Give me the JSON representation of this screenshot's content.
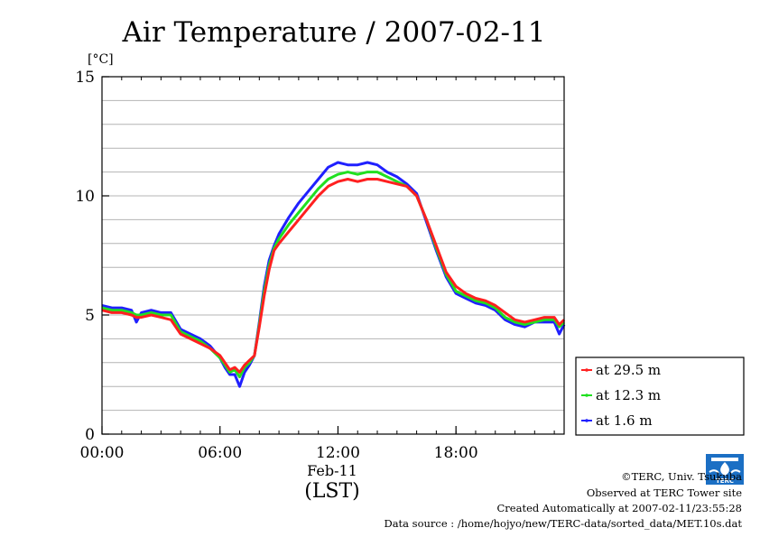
{
  "chart_data": {
    "type": "line",
    "title": "Air Temperature / 2007-02-11",
    "unit": "[°C]",
    "ylim": [
      0,
      15
    ],
    "xlim": [
      0,
      23.5
    ],
    "yticks": [
      0,
      5,
      10,
      15
    ],
    "xticks": [
      {
        "v": 0,
        "label": "00:00"
      },
      {
        "v": 6,
        "label": "06:00"
      },
      {
        "v": 12,
        "label": "12:00"
      },
      {
        "v": 18,
        "label": "18:00"
      }
    ],
    "date_label": "Feb-11",
    "xlabel": "(LST)",
    "grid": true,
    "legend_position": "right",
    "series": [
      {
        "name": "at 29.5 m",
        "color": "#ff2020",
        "x": [
          0,
          0.5,
          1,
          1.5,
          1.75,
          2,
          2.5,
          3,
          3.5,
          4,
          4.5,
          5,
          5.5,
          6,
          6.25,
          6.5,
          6.75,
          7,
          7.25,
          7.5,
          7.75,
          8,
          8.25,
          8.5,
          8.75,
          9,
          9.5,
          10,
          10.5,
          11,
          11.5,
          12,
          12.5,
          13,
          13.5,
          14,
          14.5,
          15,
          15.5,
          16,
          16.5,
          17,
          17.5,
          18,
          18.5,
          19,
          19.5,
          20,
          20.5,
          21,
          21.5,
          22,
          22.5,
          23,
          23.25,
          23.5
        ],
        "y": [
          5.2,
          5.1,
          5.1,
          5.0,
          4.9,
          4.9,
          5.0,
          4.9,
          4.8,
          4.2,
          4.0,
          3.8,
          3.6,
          3.3,
          3.0,
          2.7,
          2.8,
          2.6,
          2.9,
          3.1,
          3.3,
          4.5,
          5.8,
          6.9,
          7.7,
          8.0,
          8.5,
          9.0,
          9.5,
          10.0,
          10.4,
          10.6,
          10.7,
          10.6,
          10.7,
          10.7,
          10.6,
          10.5,
          10.4,
          10.0,
          9.0,
          7.9,
          6.8,
          6.2,
          5.9,
          5.7,
          5.6,
          5.4,
          5.1,
          4.8,
          4.7,
          4.8,
          4.9,
          4.9,
          4.6,
          4.8
        ]
      },
      {
        "name": "at 12.3 m",
        "color": "#20e020",
        "x": [
          0,
          0.5,
          1,
          1.5,
          1.75,
          2,
          2.5,
          3,
          3.5,
          4,
          4.5,
          5,
          5.5,
          6,
          6.25,
          6.5,
          6.75,
          7,
          7.25,
          7.5,
          7.75,
          8,
          8.25,
          8.5,
          8.75,
          9,
          9.5,
          10,
          10.5,
          11,
          11.5,
          12,
          12.5,
          13,
          13.5,
          14,
          14.5,
          15,
          15.5,
          16,
          16.5,
          17,
          17.5,
          18,
          18.5,
          19,
          19.5,
          20,
          20.5,
          21,
          21.5,
          22,
          22.5,
          23,
          23.25,
          23.5
        ],
        "y": [
          5.3,
          5.2,
          5.2,
          5.1,
          5.0,
          5.0,
          5.1,
          5.0,
          5.0,
          4.3,
          4.1,
          3.9,
          3.6,
          3.2,
          2.9,
          2.6,
          2.7,
          2.4,
          2.8,
          3.0,
          3.3,
          4.6,
          6.0,
          7.1,
          7.8,
          8.2,
          8.8,
          9.3,
          9.8,
          10.3,
          10.7,
          10.9,
          11.0,
          10.9,
          11.0,
          11.0,
          10.8,
          10.6,
          10.4,
          10.0,
          9.0,
          7.8,
          6.7,
          6.0,
          5.8,
          5.6,
          5.5,
          5.3,
          4.9,
          4.7,
          4.6,
          4.7,
          4.8,
          4.8,
          4.5,
          4.7
        ]
      },
      {
        "name": "at 1.6 m",
        "color": "#2020ff",
        "x": [
          0,
          0.5,
          1,
          1.5,
          1.75,
          2,
          2.5,
          3,
          3.5,
          4,
          4.5,
          5,
          5.5,
          6,
          6.25,
          6.5,
          6.75,
          7,
          7.25,
          7.5,
          7.75,
          8,
          8.25,
          8.5,
          8.75,
          9,
          9.5,
          10,
          10.5,
          11,
          11.5,
          12,
          12.5,
          13,
          13.5,
          14,
          14.5,
          15,
          15.5,
          16,
          16.5,
          17,
          17.5,
          18,
          18.5,
          19,
          19.5,
          20,
          20.5,
          21,
          21.5,
          22,
          22.5,
          23,
          23.25,
          23.5
        ],
        "y": [
          5.4,
          5.3,
          5.3,
          5.2,
          4.7,
          5.1,
          5.2,
          5.1,
          5.1,
          4.4,
          4.2,
          4.0,
          3.7,
          3.2,
          2.8,
          2.5,
          2.5,
          2.0,
          2.6,
          2.9,
          3.3,
          4.7,
          6.2,
          7.3,
          7.9,
          8.4,
          9.1,
          9.7,
          10.2,
          10.7,
          11.2,
          11.4,
          11.3,
          11.3,
          11.4,
          11.3,
          11.0,
          10.8,
          10.5,
          10.1,
          8.9,
          7.7,
          6.6,
          5.9,
          5.7,
          5.5,
          5.4,
          5.2,
          4.8,
          4.6,
          4.5,
          4.7,
          4.7,
          4.7,
          4.2,
          4.6
        ]
      }
    ]
  },
  "credits": {
    "copyright": "©TERC, Univ. Tsukuba",
    "observed": "Observed at TERC Tower site",
    "created": "Created Automatically at 2007-02-11/23:55:28",
    "source": "Data source : /home/hojyo/new/TERC-data/sorted_data/MET.10s.dat"
  },
  "logo": {
    "text": "TERC",
    "color": "#1b6fc4"
  }
}
